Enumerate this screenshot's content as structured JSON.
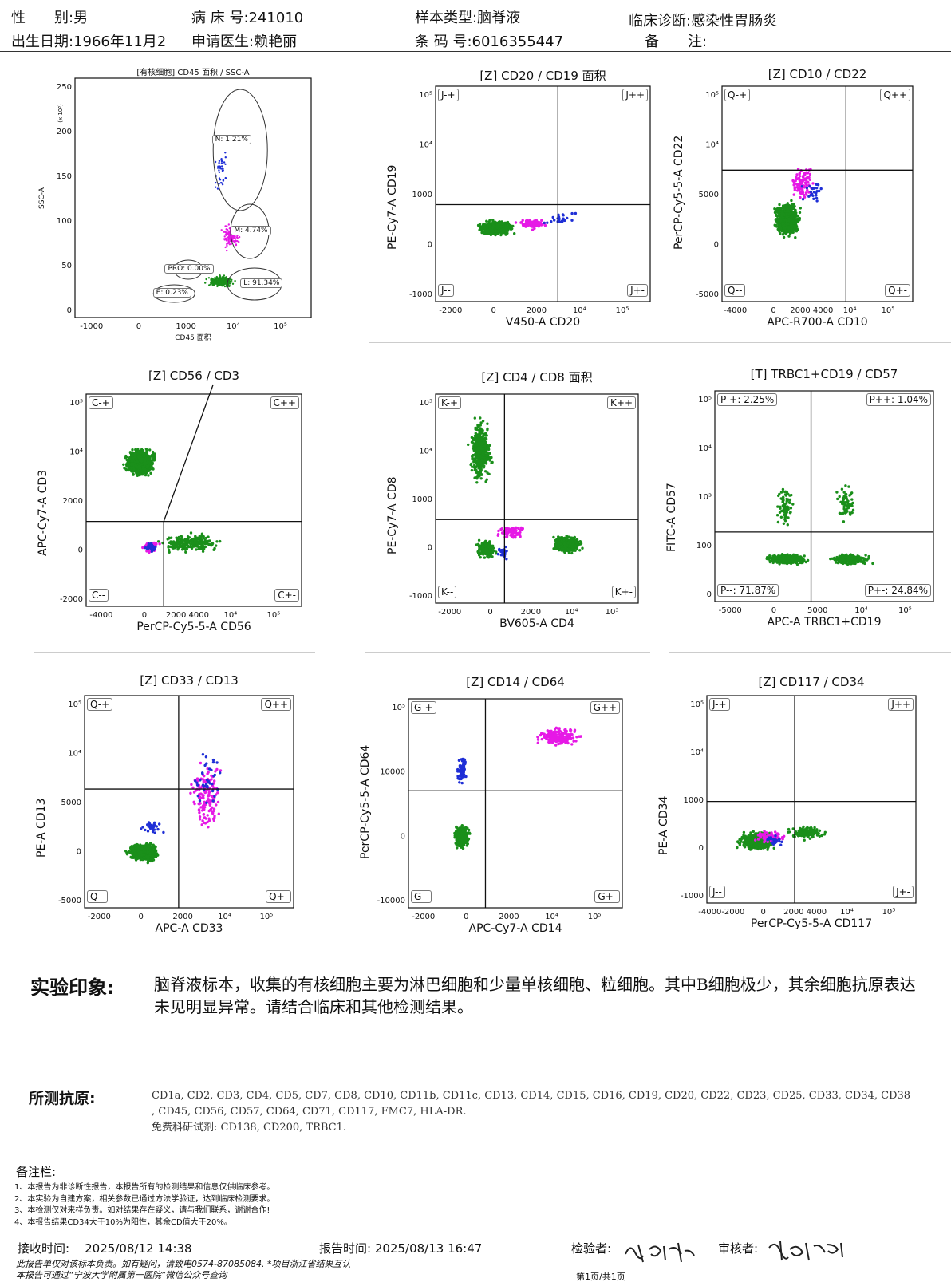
{
  "header": {
    "row1": [
      {
        "label": "性　　别:",
        "value": "男"
      },
      {
        "label": "病 床 号:",
        "value": "241010"
      },
      {
        "label": "样本类型:",
        "value": "脑脊液"
      },
      {
        "label": "临床诊断:",
        "value": "感染性胃肠炎"
      }
    ],
    "row2": [
      {
        "label": "出生日期:",
        "value": "1966年11月2"
      },
      {
        "label": "申请医生:",
        "value": "赖艳丽"
      },
      {
        "label": "条 码 号:",
        "value": "6016355447"
      },
      {
        "label": "备　　注:",
        "value": ""
      }
    ]
  },
  "panels": [
    {
      "id": "p1",
      "title": "[有核细胞] CD45 面积 / SSC-A",
      "xlabel": "CD45 面积",
      "ylabel": "SSC-A",
      "yunit": "(x 10³)",
      "xticks": [
        "-1000",
        "0",
        "1000",
        "10⁴",
        "10⁵"
      ],
      "yticks": [
        "250",
        "200",
        "150",
        "100",
        "50",
        "0"
      ],
      "gates": [
        {
          "name": "N",
          "value": "N: 1.21%"
        },
        {
          "name": "M",
          "value": "M: 4.74%"
        },
        {
          "name": "PRO",
          "value": "PRO: 0.00%"
        },
        {
          "name": "L",
          "value": "L: 91.34%"
        },
        {
          "name": "E",
          "value": "E: 0.23%"
        }
      ]
    },
    {
      "id": "p2",
      "title": "[Z] CD20 / CD19 面积",
      "xlabel": "V450-A CD20",
      "ylabel": "PE-Cy7-A CD19",
      "xticks": [
        "-2000",
        "0",
        "2000",
        "10⁴",
        "10⁵"
      ],
      "yticks": [
        "10⁵",
        "10⁴",
        "1000",
        "0",
        "-1000"
      ],
      "quadrants": [
        "J-+",
        "J++",
        "J--",
        "J+-"
      ]
    },
    {
      "id": "p3",
      "title": "[Z] CD10 / CD22",
      "xlabel": "APC-R700-A CD10",
      "ylabel": "PerCP-Cy5-5-A CD22",
      "xticks": [
        "-4000",
        "0",
        "2000 4000",
        "10⁴",
        "10⁵"
      ],
      "yticks": [
        "10⁵",
        "10⁴",
        "5000",
        "0",
        "-5000"
      ],
      "quadrants": [
        "Q-+",
        "Q++",
        "Q--",
        "Q+-"
      ]
    },
    {
      "id": "p4",
      "title": "[Z] CD56 / CD3",
      "xlabel": "PerCP-Cy5-5-A CD56",
      "ylabel": "APC-Cy7-A CD3",
      "xticks": [
        "-4000",
        "0",
        "2000 4000",
        "10⁴",
        "10⁵"
      ],
      "yticks": [
        "10⁵",
        "10⁴",
        "2000",
        "0",
        "-2000"
      ],
      "quadrants": [
        "C-+",
        "C++",
        "C--",
        "C+-"
      ]
    },
    {
      "id": "p5",
      "title": "[Z] CD4 / CD8 面积",
      "xlabel": "BV605-A CD4",
      "ylabel": "PE-Cy7-A CD8",
      "xticks": [
        "-2000",
        "0",
        "2000",
        "10⁴",
        "10⁵"
      ],
      "yticks": [
        "10⁵",
        "10⁴",
        "1000",
        "0",
        "-1000"
      ],
      "quadrants": [
        "K-+",
        "K++",
        "K--",
        "K+-"
      ]
    },
    {
      "id": "p6",
      "title": "[T] TRBC1+CD19 / CD57",
      "xlabel": "APC-A TRBC1+CD19",
      "ylabel": "FITC-A CD57",
      "xticks": [
        "-5000",
        "0",
        "5000",
        "10⁴",
        "10⁵"
      ],
      "yticks": [
        "10⁵",
        "10⁴",
        "10³",
        "100",
        "0"
      ],
      "quadrants": [
        "P-+: 2.25%",
        "P++: 1.04%",
        "P--: 71.87%",
        "P+-: 24.84%"
      ]
    },
    {
      "id": "p7",
      "title": "[Z] CD33 / CD13",
      "xlabel": "APC-A CD33",
      "ylabel": "PE-A CD13",
      "xticks": [
        "-2000",
        "0",
        "2000",
        "10⁴",
        "10⁵"
      ],
      "yticks": [
        "10⁵",
        "10⁴",
        "5000",
        "0",
        "-5000"
      ],
      "quadrants": [
        "Q-+",
        "Q++",
        "Q--",
        "Q+-"
      ]
    },
    {
      "id": "p8",
      "title": "[Z] CD14 / CD64",
      "xlabel": "APC-Cy7-A CD14",
      "ylabel": "PerCP-Cy5-5-A CD64",
      "xticks": [
        "-2000",
        "0",
        "2000",
        "10⁴",
        "10⁵"
      ],
      "yticks": [
        "10⁵",
        "10000",
        "0",
        "-10000"
      ],
      "quadrants": [
        "G-+",
        "G++",
        "G--",
        "G+-"
      ]
    },
    {
      "id": "p9",
      "title": "[Z] CD117 / CD34",
      "xlabel": "PerCP-Cy5-5-A CD117",
      "ylabel": "PE-A CD34",
      "xticks": [
        "-4000-2000",
        "0",
        "2000 4000",
        "10⁴",
        "10⁵"
      ],
      "yticks": [
        "10⁵",
        "10⁴",
        "1000",
        "0",
        "-1000"
      ],
      "quadrants": [
        "J-+",
        "J++",
        "J--",
        "J+-"
      ]
    }
  ],
  "colors": {
    "lymph": "#1a8f1a",
    "mono": "#e619e6",
    "blue": "#1f2fd6"
  },
  "impression": {
    "title": "实验印象:",
    "text": "脑脊液标本，收集的有核细胞主要为淋巴细胞和少量单核细胞、粒细胞。其中B细胞极少，其余细胞抗原表达未见明显异常。请结合临床和其他检测结果。"
  },
  "antigens": {
    "title": "所测抗原:",
    "line1": "CD1a, CD2, CD3, CD4, CD5, CD7, CD8, CD10, CD11b, CD11c, CD13, CD14, CD15, CD16, CD19, CD20, CD22, CD23, CD25, CD33, CD34, CD38",
    "line2": ", CD45, CD56, CD57, CD64, CD71, CD117, FMC7, HLA-DR.",
    "line3": "免费科研试剂: CD138, CD200, TRBC1."
  },
  "notes": {
    "title": "备注栏:",
    "items": [
      "1、本报告为非诊断性报告，本报告所有的检测结果和信息仅供临床参考。",
      "2、本实验为自建方案，相关参数已通过方法学验证，达到临床检测要求。",
      "3、本检测仅对来样负责。如对结果存在疑义，请与我们联系，谢谢合作!",
      "4、本报告结果CD34大于10%为阳性，其余CD值大于20%。"
    ]
  },
  "footer": {
    "receive_label": "接收时间:",
    "receive_time": "2025/08/12 14:38",
    "report_label": "报告时间:",
    "report_time": "2025/08/13 16:47",
    "inspector_label": "检验者:",
    "reviewer_label": "审核者:",
    "disclaimer1": "此报告单仅对该标本负责。如有疑问，请致电0574-87085084. *项目浙江省结果互认",
    "disclaimer2": "本报告可通过“宁波大学附属第一医院”微信公众号查询",
    "page": "第1页/共1页"
  }
}
